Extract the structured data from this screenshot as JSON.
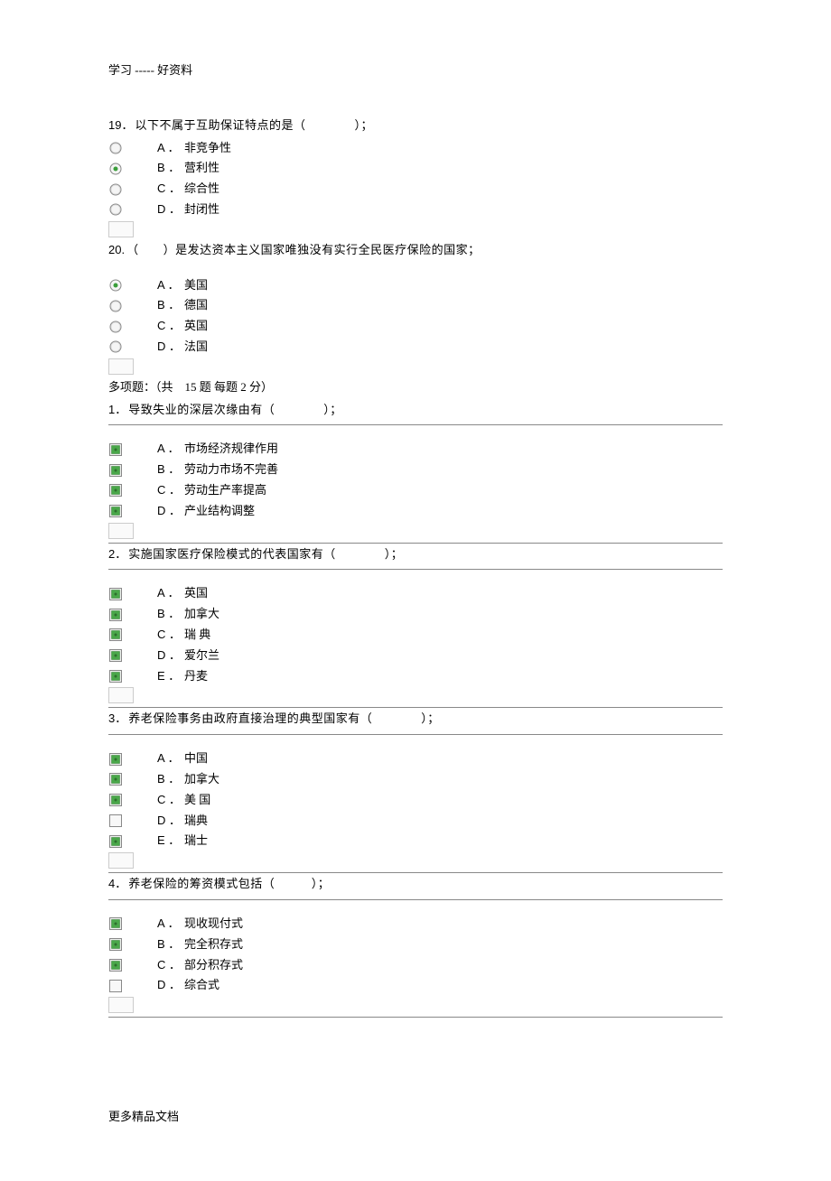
{
  "header": "学习 ----- 好资料",
  "footer": "更多精品文档",
  "section_header": "多项题：（共　15 题 每题 2 分）",
  "questions": [
    {
      "qnum": "19．",
      "text": "以下不属于互助保证特点的是（　　　　）；",
      "type": "radio",
      "ruled": false,
      "options": [
        {
          "letter": "A ．",
          "text": "非竞争性",
          "checked": false
        },
        {
          "letter": "B ．",
          "text": "营利性",
          "checked": true
        },
        {
          "letter": "C ．",
          "text": "综合性",
          "checked": false
        },
        {
          "letter": "D ．",
          "text": "封闭性",
          "checked": false
        }
      ]
    },
    {
      "qnum": "20.",
      "text": "（　　）是发达资本主义国家唯独没有实行全民医疗保险的国家；",
      "type": "radio",
      "ruled": false,
      "options": [
        {
          "letter": "A ．",
          "text": "美国",
          "checked": true
        },
        {
          "letter": "B ．",
          "text": "德国",
          "checked": false
        },
        {
          "letter": "C ．",
          "text": "英国",
          "checked": false
        },
        {
          "letter": "D ．",
          "text": "法国",
          "checked": false
        }
      ]
    }
  ],
  "multi_questions": [
    {
      "qnum": "1．",
      "text": "导致失业的深层次缘由有（　　　　）；",
      "type": "checkbox",
      "ruled": true,
      "options": [
        {
          "letter": "A ．",
          "text": "市场经济规律作用",
          "checked": true
        },
        {
          "letter": "B ．",
          "text": "劳动力市场不完善",
          "checked": true
        },
        {
          "letter": "C ．",
          "text": "劳动生产率提高",
          "checked": true
        },
        {
          "letter": "D ．",
          "text": "产业结构调整",
          "checked": true
        }
      ]
    },
    {
      "qnum": "2．",
      "text": "实施国家医疗保险模式的代表国家有（　　　　）；",
      "type": "checkbox",
      "ruled": true,
      "options": [
        {
          "letter": "A ．",
          "text": "英国",
          "checked": true
        },
        {
          "letter": "B ．",
          "text": "加拿大",
          "checked": true
        },
        {
          "letter": "C ．",
          "text": "瑞 典",
          "checked": true
        },
        {
          "letter": "D ．",
          "text": "爱尔兰",
          "checked": true
        },
        {
          "letter": "E ．",
          "text": "丹麦",
          "checked": true
        }
      ]
    },
    {
      "qnum": "3．",
      "text": "养老保险事务由政府直接治理的典型国家有（　　　　）；",
      "type": "checkbox",
      "ruled": true,
      "options": [
        {
          "letter": "A ．",
          "text": "中国",
          "checked": true
        },
        {
          "letter": "B ．",
          "text": "加拿大",
          "checked": true
        },
        {
          "letter": "C ．",
          "text": "美 国",
          "checked": true
        },
        {
          "letter": "D ．",
          "text": "瑞典",
          "checked": false
        },
        {
          "letter": "E ．",
          "text": "瑞士",
          "checked": true
        }
      ]
    },
    {
      "qnum": "4．",
      "text": "养老保险的筹资模式包括（　　　）；",
      "type": "checkbox",
      "ruled": true,
      "options": [
        {
          "letter": "A ．",
          "text": "现收现付式",
          "checked": true
        },
        {
          "letter": "B ．",
          "text": "完全积存式",
          "checked": true
        },
        {
          "letter": "C ．",
          "text": "部分积存式",
          "checked": true
        },
        {
          "letter": "D ．",
          "text": "综合式",
          "checked": false
        }
      ]
    }
  ],
  "icons": {
    "radio_unchecked_svg": "<svg viewBox='0 0 16 16'><circle cx='8' cy='8' r='6' fill='#f5f5f5' stroke='#888' stroke-width='1'/><circle cx='8' cy='8' r='5' fill='none' stroke='#ccc' stroke-width='0.5'/></svg>",
    "radio_checked_svg": "<svg viewBox='0 0 16 16'><circle cx='8' cy='8' r='6' fill='#f5f5f5' stroke='#888' stroke-width='1'/><circle cx='8' cy='8' r='2.5' fill='#3a9e3a'/></svg>",
    "checkbox_checked_svg": "<svg viewBox='0 0 16 16'><rect x='1.5' y='1.5' width='13' height='13' fill='#f0f0f0' stroke='#888' stroke-width='1'/><rect x='3.5' y='3.5' width='9' height='9' fill='#4aa84a' stroke='#2e7d2e' stroke-width='0.5'/><circle cx='8' cy='8' r='1.5' fill='#2e6e2e'/></svg>",
    "checkbox_unchecked_svg": "<svg viewBox='0 0 16 16'><rect x='1.5' y='1.5' width='13' height='13' fill='#f8f8f8' stroke='#888' stroke-width='1'/></svg>"
  }
}
